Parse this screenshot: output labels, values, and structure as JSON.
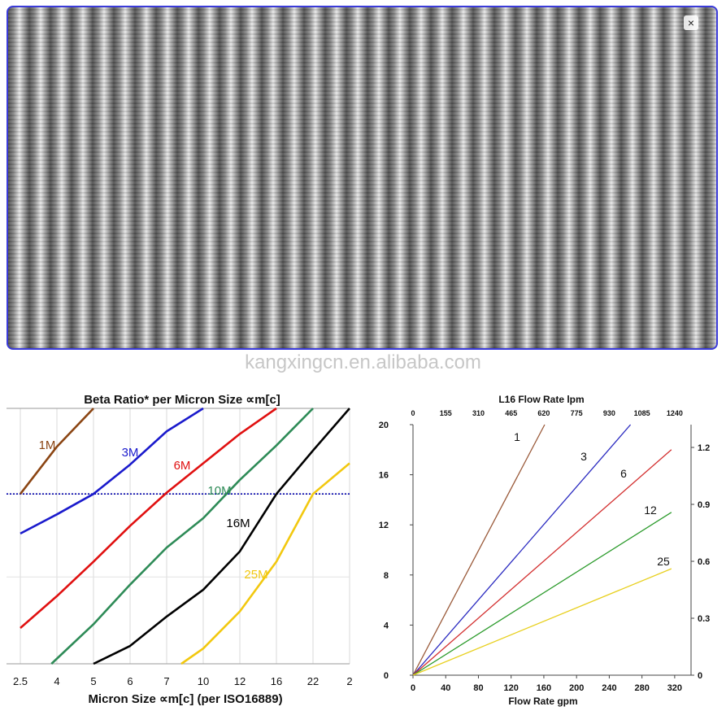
{
  "image_viewer": {
    "close_label": "×",
    "watermark": "kangxingcn.en.alibaba.com"
  },
  "chart_data": [
    {
      "type": "line",
      "title": "Beta Ratio* per Micron Size ∝m[c]",
      "xlabel": "Micron Size ∝m[c] (per ISO16889)",
      "ylabel": "",
      "x_ticks": [
        "2.5",
        "4",
        "5",
        "6",
        "7",
        "10",
        "12",
        "16",
        "22",
        "2"
      ],
      "x_tick_index_range": [
        0,
        9
      ],
      "y_relative_range": [
        0,
        1
      ],
      "reference_line": {
        "style": "dotted",
        "color": "#0000aa",
        "level": 0.665
      },
      "grid": true,
      "series": [
        {
          "name": "1M",
          "color": "#8b4513",
          "x_tick_index": [
            0,
            1,
            2
          ],
          "y": [
            0.665,
            0.85,
            1.0
          ]
        },
        {
          "name": "3M",
          "color": "#1a1acc",
          "x_tick_index": [
            0,
            1,
            2,
            3,
            4,
            5
          ],
          "y": [
            0.51,
            0.585,
            0.665,
            0.78,
            0.91,
            1.0
          ]
        },
        {
          "name": "6M",
          "color": "#e01010",
          "x_tick_index": [
            0,
            1,
            2,
            3,
            4,
            5,
            6,
            7
          ],
          "y": [
            0.14,
            0.265,
            0.4,
            0.54,
            0.67,
            0.785,
            0.9,
            1.0
          ]
        },
        {
          "name": "10M",
          "color": "#2e8b57",
          "x_tick_index": [
            0.85,
            2,
            3,
            4,
            5,
            6,
            7,
            8
          ],
          "y": [
            0.0,
            0.155,
            0.31,
            0.455,
            0.57,
            0.72,
            0.855,
            1.0
          ]
        },
        {
          "name": "16M",
          "color": "#000000",
          "x_tick_index": [
            2,
            3,
            4,
            5,
            6,
            7,
            8,
            9
          ],
          "y": [
            0.0,
            0.07,
            0.185,
            0.29,
            0.44,
            0.665,
            0.835,
            1.0
          ]
        },
        {
          "name": "25M",
          "color": "#f2c80f",
          "x_tick_index": [
            4.4,
            5,
            6,
            7,
            8,
            9
          ],
          "y": [
            0.0,
            0.06,
            0.205,
            0.4,
            0.665,
            0.785
          ]
        }
      ]
    },
    {
      "type": "line",
      "title": "L16 Flow Rate lpm",
      "xlabel": "Flow Rate gpm",
      "ylabel": "",
      "xlim": [
        0,
        340
      ],
      "x_ticks": [
        0,
        40,
        80,
        120,
        160,
        200,
        240,
        280,
        320
      ],
      "top_axis_ticks": [
        "0",
        "155",
        "310",
        "465",
        "620",
        "775",
        "930",
        "1085",
        "1240"
      ],
      "ylim": [
        0,
        20
      ],
      "y_ticks": [
        0,
        4,
        8,
        12,
        16,
        20
      ],
      "right_axis_ticks": [
        "0",
        "0.3",
        "0.6",
        "0.9",
        "1.2"
      ],
      "grid": false,
      "series": [
        {
          "name": "1",
          "color": "#9a5a3a",
          "x": [
            0,
            161
          ],
          "y": [
            0,
            20
          ]
        },
        {
          "name": "3",
          "color": "#2a2ac0",
          "x": [
            0,
            266
          ],
          "y": [
            0,
            20
          ]
        },
        {
          "name": "6",
          "color": "#d33030",
          "x": [
            0,
            316
          ],
          "y": [
            0,
            18
          ]
        },
        {
          "name": "12",
          "color": "#2a9a2a",
          "x": [
            0,
            316
          ],
          "y": [
            0,
            13
          ]
        },
        {
          "name": "25",
          "color": "#e8d020",
          "x": [
            0,
            316
          ],
          "y": [
            0,
            8.5
          ]
        }
      ]
    }
  ]
}
